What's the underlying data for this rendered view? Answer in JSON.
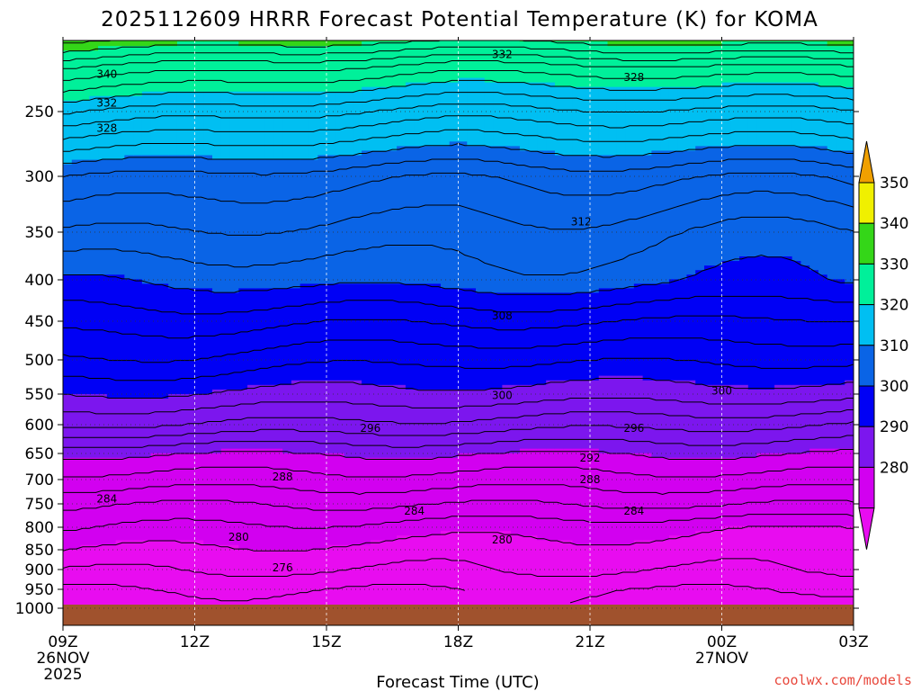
{
  "chart_data": {
    "type": "heatmap",
    "title": "2025112609 HRRR Forecast Potential Temperature (K) for KOMA",
    "xlabel": "Forecast Time (UTC)",
    "ylabel": "",
    "units": "K",
    "x_ticks": [
      "09Z",
      "12Z",
      "15Z",
      "18Z",
      "21Z",
      "00Z",
      "03Z"
    ],
    "x_sublabels": [
      {
        "tick": "09Z",
        "lines": [
          "26NOV",
          "2025"
        ]
      },
      {
        "tick": "00Z",
        "lines": [
          "27NOV"
        ]
      }
    ],
    "y_ticks": [
      250,
      300,
      350,
      400,
      450,
      500,
      550,
      600,
      650,
      700,
      750,
      800,
      850,
      900,
      950,
      1000
    ],
    "y_axis": "pressure (hPa), top ~200, bottom ~1025",
    "forecast_hours": [
      0,
      3,
      6,
      9,
      12,
      15,
      18
    ],
    "colorbar": {
      "levels": [
        280,
        290,
        300,
        310,
        320,
        330,
        340,
        350
      ],
      "colors": [
        "#d200f0",
        "#7c16ee",
        "#0000f5",
        "#0a64e6",
        "#00bff2",
        "#00f09a",
        "#34d618",
        "#f0f000"
      ],
      "under_color": "#e80cf0",
      "over_color": "#f0a000",
      "labels": [
        "280",
        "290",
        "300",
        "310",
        "320",
        "330",
        "340",
        "350"
      ]
    },
    "contour_interval": 2,
    "theta_profiles": [
      {
        "hour": 0,
        "pressure": [
          1000,
          950,
          900,
          850,
          800,
          750,
          700,
          650,
          600,
          550,
          500,
          450,
          400,
          350,
          300,
          250,
          220,
          200
        ],
        "theta": [
          274,
          276,
          278,
          280,
          282,
          284,
          287,
          290,
          296,
          300,
          304,
          307,
          310,
          314,
          318,
          328,
          336,
          344
        ]
      },
      {
        "hour": 9,
        "pressure": [
          1000,
          950,
          900,
          850,
          800,
          750,
          700,
          650,
          600,
          550,
          500,
          450,
          400,
          350,
          300,
          250,
          220,
          200
        ],
        "theta": [
          276,
          276,
          278,
          279,
          281,
          284,
          287,
          290,
          295,
          299,
          302,
          306,
          311,
          313,
          316,
          325,
          333,
          342
        ]
      },
      {
        "hour": 18,
        "pressure": [
          1000,
          950,
          900,
          850,
          800,
          750,
          700,
          650,
          600,
          550,
          500,
          450,
          400,
          350,
          300,
          250,
          220,
          200
        ],
        "theta": [
          274,
          276,
          278,
          279,
          280,
          284,
          287,
          290,
          294,
          299,
          303,
          307,
          312,
          314,
          318,
          326,
          334,
          344
        ]
      }
    ],
    "contour_labels": [
      {
        "value": "340",
        "hour": 1.0,
        "pressure": 225
      },
      {
        "value": "332",
        "hour": 1.0,
        "pressure": 244
      },
      {
        "value": "328",
        "hour": 1.0,
        "pressure": 262
      },
      {
        "value": "332",
        "hour": 10.0,
        "pressure": 213
      },
      {
        "value": "328",
        "hour": 13.0,
        "pressure": 227
      },
      {
        "value": "312",
        "hour": 11.8,
        "pressure": 340
      },
      {
        "value": "308",
        "hour": 10.0,
        "pressure": 443
      },
      {
        "value": "300",
        "hour": 10.0,
        "pressure": 552
      },
      {
        "value": "300",
        "hour": 15.0,
        "pressure": 545
      },
      {
        "value": "296",
        "hour": 7.0,
        "pressure": 606
      },
      {
        "value": "296",
        "hour": 13.0,
        "pressure": 606
      },
      {
        "value": "292",
        "hour": 12.0,
        "pressure": 658
      },
      {
        "value": "288",
        "hour": 5.0,
        "pressure": 695
      },
      {
        "value": "288",
        "hour": 12.0,
        "pressure": 700
      },
      {
        "value": "284",
        "hour": 1.0,
        "pressure": 740
      },
      {
        "value": "284",
        "hour": 8.0,
        "pressure": 765
      },
      {
        "value": "284",
        "hour": 13.0,
        "pressure": 765
      },
      {
        "value": "280",
        "hour": 4.0,
        "pressure": 822
      },
      {
        "value": "280",
        "hour": 10.0,
        "pressure": 828
      },
      {
        "value": "276",
        "hour": 5.0,
        "pressure": 895
      }
    ],
    "ground_color": "#a0522d",
    "grid": true
  },
  "credit": "coolwx.com/models"
}
